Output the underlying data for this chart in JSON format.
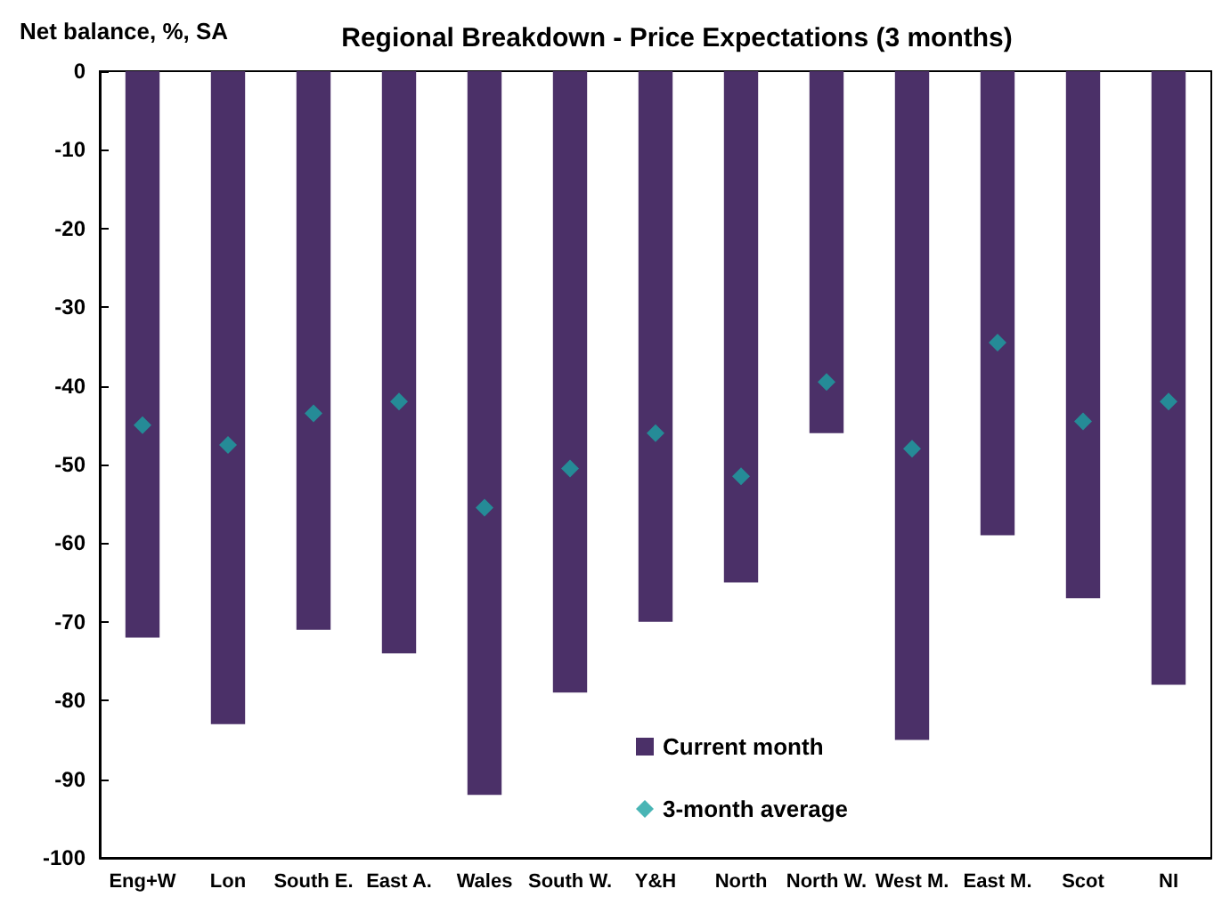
{
  "chart_data": {
    "type": "bar",
    "title": "Regional Breakdown - Price Expectations (3 months)",
    "ylabel": "Net balance, %, SA",
    "categories": [
      "Eng+W",
      "Lon",
      "South E.",
      "East A.",
      "Wales",
      "South W.",
      "Y&H",
      "North",
      "North W.",
      "West M.",
      "East M.",
      "Scot",
      "NI"
    ],
    "series": [
      {
        "name": "Current month",
        "color": "#4b3068",
        "values": [
          -72,
          -83,
          -71,
          -74,
          -92,
          -79,
          -70,
          -65,
          -46,
          -85,
          -59,
          -67,
          -78
        ]
      },
      {
        "name": "3-month average",
        "type": "scatter",
        "color": "#1ba3a3",
        "marker": "diamond",
        "values": [
          -45,
          -47.5,
          -43.5,
          -42,
          -55.5,
          -50.5,
          -46,
          -51.5,
          -39.5,
          -48,
          -34.5,
          -44.5,
          -42
        ]
      }
    ],
    "ylim": [
      -100,
      0
    ],
    "yticks": [
      -100,
      -90,
      -80,
      -70,
      -60,
      -50,
      -40,
      -30,
      -20,
      -10,
      0
    ],
    "grid": false,
    "legend": "bottom right"
  }
}
